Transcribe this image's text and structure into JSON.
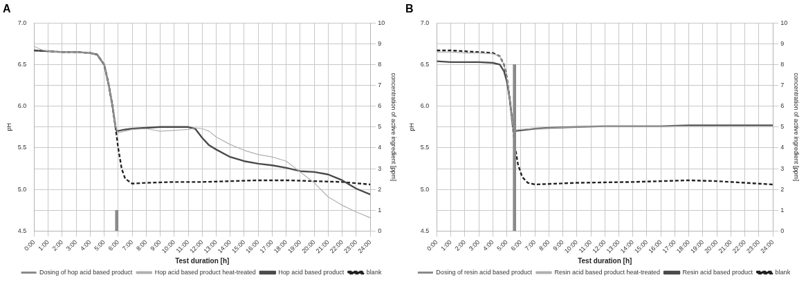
{
  "chart_data": [
    {
      "type": "line",
      "title": "A",
      "xlabel": "Test duration [h]",
      "ylabel": "pH",
      "y2label": "concentration of active ingredient [ppm]",
      "xlim": [
        0,
        24
      ],
      "xticks": [
        {
          "value": 0,
          "label": "0:00"
        },
        {
          "value": 1,
          "label": "1:00"
        },
        {
          "value": 2,
          "label": "2:00"
        },
        {
          "value": 3,
          "label": "3:00"
        },
        {
          "value": 4,
          "label": "4:00"
        },
        {
          "value": 5,
          "label": "5:00"
        },
        {
          "value": 6,
          "label": "6:00"
        },
        {
          "value": 7,
          "label": "7:00"
        },
        {
          "value": 8,
          "label": "8:00"
        },
        {
          "value": 9,
          "label": "9:00"
        },
        {
          "value": 10,
          "label": "10:00"
        },
        {
          "value": 11,
          "label": "11:00"
        },
        {
          "value": 12,
          "label": "12:00"
        },
        {
          "value": 13,
          "label": "13:00"
        },
        {
          "value": 14,
          "label": "14:00"
        },
        {
          "value": 15,
          "label": "15:00"
        },
        {
          "value": 16,
          "label": "16:00"
        },
        {
          "value": 17,
          "label": "17:00"
        },
        {
          "value": 18,
          "label": "18:00"
        },
        {
          "value": 19,
          "label": "19:00"
        },
        {
          "value": 20,
          "label": "20:00"
        },
        {
          "value": 21,
          "label": "21:00"
        },
        {
          "value": 22,
          "label": "22:00"
        },
        {
          "value": 23,
          "label": "23:00"
        },
        {
          "value": 24,
          "label": "24:00"
        }
      ],
      "ylim": [
        4.5,
        7.0
      ],
      "yticks": [
        4.5,
        {
          "value": 5,
          "label": "5.0"
        },
        5.5,
        {
          "value": 6,
          "label": "6.0"
        },
        6.5,
        {
          "value": 7,
          "label": "7.0"
        }
      ],
      "y2lim": [
        0,
        10
      ],
      "y2ticks": [
        0,
        1,
        2,
        3,
        4,
        5,
        6,
        7,
        8,
        9,
        10
      ],
      "grid": true,
      "legend": "bottom",
      "marker": "none",
      "series": [
        {
          "name": "Dosing of hop acid based product",
          "type": "bar",
          "axis": "y2",
          "color": "#8a8a8a",
          "x": [
            5.9
          ],
          "values": [
            1
          ]
        },
        {
          "name": "Hop acid based product heat-treated",
          "color": "#b0b0b0",
          "x": [
            0,
            0.5,
            1,
            2,
            3,
            4,
            4.5,
            5,
            5.3,
            5.6,
            5.8,
            6,
            7,
            8,
            9,
            10,
            11,
            11.5,
            12,
            12.5,
            13,
            14,
            15,
            16,
            17,
            18,
            19,
            20,
            21,
            22,
            23,
            24
          ],
          "values": [
            6.72,
            6.68,
            6.66,
            6.65,
            6.65,
            6.64,
            6.62,
            6.5,
            6.28,
            6.0,
            5.76,
            5.68,
            5.72,
            5.73,
            5.7,
            5.71,
            5.72,
            5.74,
            5.73,
            5.7,
            5.63,
            5.54,
            5.47,
            5.42,
            5.39,
            5.34,
            5.21,
            5.08,
            4.91,
            4.81,
            4.73,
            4.66
          ]
        },
        {
          "name": "Hop acid based product",
          "color": "#4a4a4a",
          "x": [
            0,
            1,
            2,
            3,
            4,
            4.5,
            5,
            5.3,
            5.6,
            5.8,
            5.9,
            6.5,
            7,
            8,
            9,
            10,
            11,
            11.5,
            12,
            12.5,
            13,
            14,
            15,
            16,
            17,
            18,
            19,
            20,
            21,
            22,
            23,
            24
          ],
          "values": [
            6.67,
            6.66,
            6.65,
            6.65,
            6.64,
            6.62,
            6.5,
            6.28,
            6.0,
            5.76,
            5.7,
            5.72,
            5.73,
            5.74,
            5.75,
            5.75,
            5.75,
            5.73,
            5.62,
            5.53,
            5.48,
            5.39,
            5.34,
            5.31,
            5.29,
            5.26,
            5.22,
            5.21,
            5.18,
            5.11,
            5.01,
            4.94
          ]
        },
        {
          "name": "blank",
          "color": "#222222",
          "line_style": "dashed",
          "x": [
            0,
            1,
            2,
            3,
            4,
            4.5,
            5,
            5.3,
            5.6,
            5.8,
            6,
            6.25,
            6.5,
            7,
            8,
            10,
            12,
            14,
            16,
            18,
            20,
            22,
            24
          ],
          "values": [
            6.67,
            6.66,
            6.65,
            6.65,
            6.64,
            6.62,
            6.5,
            6.28,
            6.0,
            5.76,
            5.5,
            5.25,
            5.13,
            5.07,
            5.08,
            5.09,
            5.09,
            5.1,
            5.11,
            5.11,
            5.1,
            5.09,
            5.06
          ]
        }
      ]
    },
    {
      "type": "line",
      "title": "B",
      "xlabel": "Test duration [h]",
      "ylabel": "pH",
      "y2label": "concentration of active ingredient [ppm]",
      "xlim": [
        0,
        24
      ],
      "xticks": [
        {
          "value": 0,
          "label": "0:00"
        },
        {
          "value": 1,
          "label": "1:00"
        },
        {
          "value": 2,
          "label": "2:00"
        },
        {
          "value": 3,
          "label": "3:00"
        },
        {
          "value": 4,
          "label": "4:00"
        },
        {
          "value": 5,
          "label": "5:00"
        },
        {
          "value": 6,
          "label": "6:00"
        },
        {
          "value": 7,
          "label": "7:00"
        },
        {
          "value": 8,
          "label": "8:00"
        },
        {
          "value": 9,
          "label": "9:00"
        },
        {
          "value": 10,
          "label": "10:00"
        },
        {
          "value": 11,
          "label": "11:00"
        },
        {
          "value": 12,
          "label": "12:00"
        },
        {
          "value": 13,
          "label": "13:00"
        },
        {
          "value": 14,
          "label": "14:00"
        },
        {
          "value": 15,
          "label": "15:00"
        },
        {
          "value": 16,
          "label": "16:00"
        },
        {
          "value": 17,
          "label": "17:00"
        },
        {
          "value": 18,
          "label": "18:00"
        },
        {
          "value": 19,
          "label": "19:00"
        },
        {
          "value": 20,
          "label": "20:00"
        },
        {
          "value": 21,
          "label": "21:00"
        },
        {
          "value": 22,
          "label": "22:00"
        },
        {
          "value": 23,
          "label": "23:00"
        },
        {
          "value": 24,
          "label": "24:00"
        }
      ],
      "ylim": [
        4.5,
        7.0
      ],
      "yticks": [
        4.5,
        {
          "value": 5,
          "label": "5.0"
        },
        5.5,
        {
          "value": 6,
          "label": "6.0"
        },
        6.5,
        {
          "value": 7,
          "label": "7.0"
        }
      ],
      "y2lim": [
        0,
        10
      ],
      "y2ticks": [
        0,
        1,
        2,
        3,
        4,
        5,
        6,
        7,
        8,
        9,
        10
      ],
      "grid": true,
      "legend": "bottom",
      "marker": "none",
      "series": [
        {
          "name": "Dosing of resin acid based product",
          "type": "bar",
          "axis": "y2",
          "color": "#8a8a8a",
          "x": [
            5.55
          ],
          "values": [
            8
          ]
        },
        {
          "name": "Resin acid based product heat-treated",
          "color": "#b0b0b0",
          "x": [
            0,
            1,
            2,
            3,
            4,
            4.5,
            4.8,
            5,
            5.2,
            5.4,
            5.5,
            6,
            7,
            8,
            10,
            12,
            14,
            16,
            18,
            20,
            22,
            24
          ],
          "values": [
            6.65,
            6.65,
            6.64,
            6.64,
            6.63,
            6.6,
            6.5,
            6.35,
            6.1,
            5.8,
            5.71,
            5.72,
            5.73,
            5.74,
            5.75,
            5.76,
            5.76,
            5.76,
            5.76,
            5.76,
            5.76,
            5.76
          ]
        },
        {
          "name": "Resin acid based product",
          "color": "#4a4a4a",
          "x": [
            0,
            1,
            2,
            3,
            4,
            4.5,
            4.8,
            5,
            5.2,
            5.4,
            5.5,
            6,
            7,
            8,
            10,
            12,
            14,
            16,
            18,
            20,
            22,
            24
          ],
          "values": [
            6.54,
            6.53,
            6.53,
            6.53,
            6.52,
            6.5,
            6.42,
            6.3,
            6.1,
            5.8,
            5.7,
            5.71,
            5.73,
            5.74,
            5.75,
            5.76,
            5.76,
            5.76,
            5.77,
            5.77,
            5.77,
            5.77
          ]
        },
        {
          "name": "blank",
          "color": "#222222",
          "line_style": "dashed",
          "x": [
            0,
            1,
            2,
            3,
            4,
            4.5,
            4.8,
            5,
            5.2,
            5.4,
            5.6,
            5.8,
            6.1,
            6.5,
            7,
            10,
            14,
            18,
            20,
            22,
            24
          ],
          "values": [
            6.67,
            6.67,
            6.66,
            6.65,
            6.64,
            6.6,
            6.5,
            6.35,
            6.1,
            5.8,
            5.5,
            5.3,
            5.15,
            5.08,
            5.06,
            5.08,
            5.09,
            5.11,
            5.1,
            5.08,
            5.06
          ]
        }
      ]
    }
  ]
}
